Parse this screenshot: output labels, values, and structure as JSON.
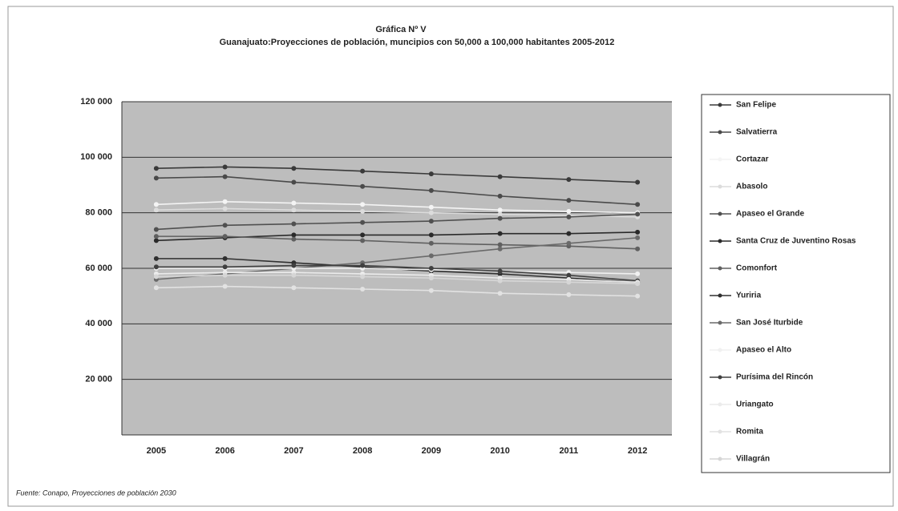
{
  "chart_data": {
    "type": "line",
    "title": "Gráfica Nº V",
    "subtitle": "Guanajuato:Proyecciones  de población, muncipios con 50,000 a 100,000 habitantes  2005-2012",
    "source": "Fuente: Conapo, Proyecciones de población 2030",
    "categories": [
      "2005",
      "2006",
      "2007",
      "2008",
      "2009",
      "2010",
      "2011",
      "2012"
    ],
    "ylim": [
      0,
      120000
    ],
    "yticks": [
      {
        "value": 20000,
        "label": "20 000"
      },
      {
        "value": 40000,
        "label": "40 000"
      },
      {
        "value": 60000,
        "label": "60 000"
      },
      {
        "value": 80000,
        "label": "80 000"
      },
      {
        "value": 100000,
        "label": "100 000"
      },
      {
        "value": 120000,
        "label": "120 000"
      }
    ],
    "grid": true,
    "legend": "right",
    "series": [
      {
        "name": "San Felipe",
        "color": "#3a3a3a",
        "values": [
          96000,
          96500,
          96000,
          95000,
          94000,
          93000,
          92000,
          91000
        ]
      },
      {
        "name": "Salvatierra",
        "color": "#4a4a4a",
        "values": [
          92500,
          93000,
          91000,
          89500,
          88000,
          86000,
          84500,
          83000
        ]
      },
      {
        "name": "Cortazar",
        "color": "#f4f4f4",
        "values": [
          83000,
          84000,
          83500,
          83000,
          82000,
          81000,
          80500,
          80000
        ]
      },
      {
        "name": "Abasolo",
        "color": "#dcdcdc",
        "values": [
          81000,
          81500,
          81000,
          80500,
          80000,
          79500,
          79000,
          78500
        ]
      },
      {
        "name": "Apaseo el Grande",
        "color": "#505050",
        "values": [
          74000,
          75500,
          76000,
          76500,
          77000,
          78000,
          78500,
          79500
        ]
      },
      {
        "name": "Santa Cruz de Juventino Rosas",
        "color": "#2a2a2a",
        "values": [
          70000,
          71000,
          72000,
          72000,
          72000,
          72500,
          72500,
          73000
        ]
      },
      {
        "name": "Comonfort",
        "color": "#606060",
        "values": [
          71500,
          71500,
          70500,
          70000,
          69000,
          68500,
          68000,
          67000
        ]
      },
      {
        "name": "Yuriria",
        "color": "#303030",
        "values": [
          63500,
          63500,
          62000,
          60500,
          59000,
          58000,
          56500,
          55000
        ]
      },
      {
        "name": "San José Iturbide",
        "color": "#6a6a6a",
        "values": [
          56000,
          58000,
          60000,
          62000,
          64500,
          67000,
          69000,
          71000
        ]
      },
      {
        "name": "Apaseo el Alto",
        "color": "#f0f0f0",
        "values": [
          60000,
          60000,
          60000,
          60000,
          59500,
          59000,
          58500,
          58000
        ]
      },
      {
        "name": "Purísima del Rincón",
        "color": "#404040",
        "values": [
          60500,
          60500,
          61000,
          61000,
          60000,
          59000,
          57500,
          55500
        ]
      },
      {
        "name": "Uriangato",
        "color": "#ebebeb",
        "values": [
          58000,
          58500,
          58500,
          58000,
          57500,
          56500,
          56000,
          55000
        ]
      },
      {
        "name": "Romita",
        "color": "#e2e2e2",
        "values": [
          53000,
          53500,
          53000,
          52500,
          52000,
          51000,
          50500,
          50000
        ]
      },
      {
        "name": "Villagrán",
        "color": "#d6d6d6",
        "values": [
          57000,
          57500,
          57500,
          57000,
          56500,
          55500,
          55000,
          54500
        ]
      }
    ]
  }
}
